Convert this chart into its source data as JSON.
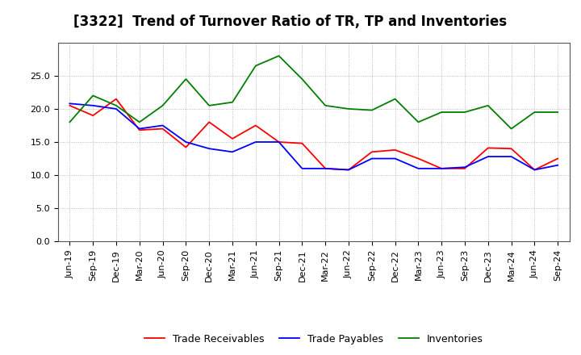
{
  "title": "[3322]  Trend of Turnover Ratio of TR, TP and Inventories",
  "x_labels": [
    "Jun-19",
    "Sep-19",
    "Dec-19",
    "Mar-20",
    "Jun-20",
    "Sep-20",
    "Dec-20",
    "Mar-21",
    "Jun-21",
    "Sep-21",
    "Dec-21",
    "Mar-22",
    "Jun-22",
    "Sep-22",
    "Dec-22",
    "Mar-23",
    "Jun-23",
    "Sep-23",
    "Dec-23",
    "Mar-24",
    "Jun-24",
    "Sep-24"
  ],
  "trade_receivables": [
    20.5,
    19.0,
    21.5,
    16.8,
    17.0,
    14.2,
    18.0,
    15.5,
    17.5,
    15.0,
    14.8,
    11.0,
    10.8,
    13.5,
    13.8,
    12.5,
    11.0,
    11.0,
    14.1,
    14.0,
    10.8,
    12.5
  ],
  "trade_payables": [
    20.8,
    20.5,
    20.0,
    17.0,
    17.5,
    15.0,
    14.0,
    13.5,
    15.0,
    15.0,
    11.0,
    11.0,
    10.8,
    12.5,
    12.5,
    11.0,
    11.0,
    11.2,
    12.8,
    12.8,
    10.8,
    11.5
  ],
  "inventories": [
    18.0,
    22.0,
    20.5,
    18.0,
    20.5,
    24.5,
    20.5,
    21.0,
    26.5,
    28.0,
    24.5,
    20.5,
    20.0,
    19.8,
    21.5,
    18.0,
    19.5,
    19.5,
    20.5,
    17.0,
    19.5,
    19.5
  ],
  "ylim": [
    0,
    30
  ],
  "yticks": [
    0.0,
    5.0,
    10.0,
    15.0,
    20.0,
    25.0
  ],
  "color_tr": "#FF0000",
  "color_tp": "#0000FF",
  "color_inv": "#008000",
  "legend_labels": [
    "Trade Receivables",
    "Trade Payables",
    "Inventories"
  ],
  "bg_color": "#FFFFFF",
  "grid_color": "#AAAAAA",
  "title_fontsize": 12,
  "legend_fontsize": 9,
  "tick_fontsize": 8
}
